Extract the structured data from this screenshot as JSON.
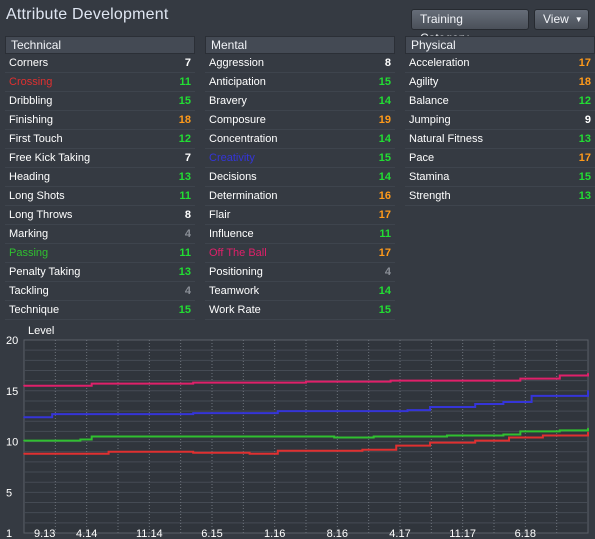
{
  "header": {
    "title": "Attribute Development",
    "training_category_label": "Training Category",
    "view_label": "View"
  },
  "columns": [
    {
      "heading": "Technical",
      "attributes": [
        {
          "name": "Corners",
          "value": "7"
        },
        {
          "name": "Crossing",
          "value": "11",
          "name_color": "#e03030"
        },
        {
          "name": "Dribbling",
          "value": "15"
        },
        {
          "name": "Finishing",
          "value": "18"
        },
        {
          "name": "First Touch",
          "value": "12"
        },
        {
          "name": "Free Kick Taking",
          "value": "7"
        },
        {
          "name": "Heading",
          "value": "13"
        },
        {
          "name": "Long Shots",
          "value": "11"
        },
        {
          "name": "Long Throws",
          "value": "8"
        },
        {
          "name": "Marking",
          "value": "4"
        },
        {
          "name": "Passing",
          "value": "11",
          "name_color": "#30c030"
        },
        {
          "name": "Penalty Taking",
          "value": "13"
        },
        {
          "name": "Tackling",
          "value": "4"
        },
        {
          "name": "Technique",
          "value": "15"
        }
      ]
    },
    {
      "heading": "Mental",
      "attributes": [
        {
          "name": "Aggression",
          "value": "8"
        },
        {
          "name": "Anticipation",
          "value": "15"
        },
        {
          "name": "Bravery",
          "value": "14"
        },
        {
          "name": "Composure",
          "value": "19"
        },
        {
          "name": "Concentration",
          "value": "14"
        },
        {
          "name": "Creativity",
          "value": "15",
          "name_color": "#3535d8"
        },
        {
          "name": "Decisions",
          "value": "14"
        },
        {
          "name": "Determination",
          "value": "16"
        },
        {
          "name": "Flair",
          "value": "17"
        },
        {
          "name": "Influence",
          "value": "11"
        },
        {
          "name": "Off The Ball",
          "value": "17",
          "name_color": "#e0206a"
        },
        {
          "name": "Positioning",
          "value": "4"
        },
        {
          "name": "Teamwork",
          "value": "14"
        },
        {
          "name": "Work Rate",
          "value": "15"
        }
      ]
    },
    {
      "heading": "Physical",
      "attributes": [
        {
          "name": "Acceleration",
          "value": "17"
        },
        {
          "name": "Agility",
          "value": "18"
        },
        {
          "name": "Balance",
          "value": "12"
        },
        {
          "name": "Jumping",
          "value": "9"
        },
        {
          "name": "Natural Fitness",
          "value": "13"
        },
        {
          "name": "Pace",
          "value": "17"
        },
        {
          "name": "Stamina",
          "value": "15"
        },
        {
          "name": "Strength",
          "value": "13"
        }
      ]
    }
  ],
  "value_colors": {
    "low": "#8a8f97",
    "normal": "#ffffff",
    "good": "#22dd33",
    "excellent": "#ff9a1a"
  },
  "chart_data": {
    "type": "line",
    "ylabel": "Level",
    "ylim": [
      1,
      20
    ],
    "yticks": [
      1,
      5,
      10,
      15,
      20
    ],
    "xticks": [
      "9.13",
      "4.14",
      "11.14",
      "6.15",
      "1.16",
      "8.16",
      "4.17",
      "11.17",
      "6.18"
    ],
    "grid": true,
    "series": [
      {
        "attribute": "Off The Ball",
        "color": "#e0206a",
        "points": [
          [
            0,
            15.5
          ],
          [
            0.1,
            15.5
          ],
          [
            0.12,
            15.7
          ],
          [
            0.3,
            15.8
          ],
          [
            0.5,
            15.9
          ],
          [
            0.65,
            16
          ],
          [
            0.85,
            16
          ],
          [
            0.88,
            16.2
          ],
          [
            0.95,
            16.5
          ],
          [
            1,
            16.7
          ]
        ]
      },
      {
        "attribute": "Creativity",
        "color": "#3535d8",
        "points": [
          [
            0,
            12.4
          ],
          [
            0.05,
            12.7
          ],
          [
            0.3,
            12.8
          ],
          [
            0.45,
            13
          ],
          [
            0.68,
            13.1
          ],
          [
            0.72,
            13.4
          ],
          [
            0.8,
            13.7
          ],
          [
            0.85,
            13.9
          ],
          [
            0.9,
            14.5
          ],
          [
            1,
            15
          ]
        ]
      },
      {
        "attribute": "Passing",
        "color": "#30c030",
        "points": [
          [
            0,
            10.1
          ],
          [
            0.1,
            10.2
          ],
          [
            0.12,
            10.5
          ],
          [
            0.5,
            10.5
          ],
          [
            0.55,
            10.4
          ],
          [
            0.62,
            10.5
          ],
          [
            0.7,
            10.5
          ],
          [
            0.75,
            10.6
          ],
          [
            0.85,
            10.7
          ],
          [
            0.88,
            11
          ],
          [
            0.95,
            11.1
          ],
          [
            1,
            11.3
          ]
        ]
      },
      {
        "attribute": "Crossing",
        "color": "#e03030",
        "points": [
          [
            0,
            8.8
          ],
          [
            0.1,
            8.8
          ],
          [
            0.15,
            9
          ],
          [
            0.3,
            8.9
          ],
          [
            0.4,
            8.8
          ],
          [
            0.45,
            9.1
          ],
          [
            0.6,
            9.2
          ],
          [
            0.66,
            9.6
          ],
          [
            0.72,
            9.9
          ],
          [
            0.8,
            10.1
          ],
          [
            0.86,
            10.4
          ],
          [
            0.92,
            10.6
          ],
          [
            1,
            10.9
          ]
        ]
      }
    ]
  }
}
